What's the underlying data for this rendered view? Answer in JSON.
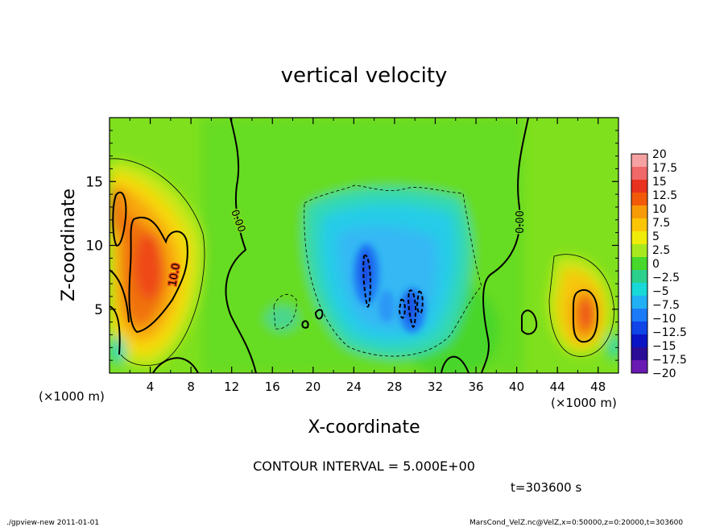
{
  "chart_data": {
    "type": "heatmap",
    "title": "vertical velocity",
    "xlabel": "X-coordinate",
    "ylabel": "Z-coordinate",
    "x_unit_left": "(×1000 m)",
    "x_unit_right": "(×1000 m)",
    "xlim": [
      0,
      50
    ],
    "ylim": [
      0,
      20
    ],
    "xticks": [
      "4",
      "8",
      "12",
      "16",
      "20",
      "24",
      "28",
      "32",
      "36",
      "40",
      "44",
      "48"
    ],
    "yticks": [
      "5",
      "10",
      "15"
    ],
    "grid": false,
    "colorbar": {
      "labels": [
        "20",
        "17.5",
        "15",
        "12.5",
        "10",
        "7.5",
        "5",
        "2.5",
        "0",
        "−2.5",
        "−5",
        "−7.5",
        "−10",
        "−12.5",
        "−15",
        "−17.5",
        "−20"
      ],
      "colors": [
        "#f6a2a2",
        "#f06868",
        "#e8331e",
        "#f25a0a",
        "#f79a08",
        "#fcc506",
        "#f0ec0a",
        "#a8e81e",
        "#46d82a",
        "#2ad08c",
        "#18d8d8",
        "#22b0f4",
        "#1a7af8",
        "#0e44e8",
        "#0a14c4",
        "#2a0c96",
        "#6a1ab2"
      ]
    },
    "contour_labels": [
      "0.00",
      "0.00",
      "10.0"
    ],
    "contour_interval": "CONTOUR INTERVAL = 5.000E+00",
    "time_label": "t=303600 s",
    "updrafts": [
      {
        "x": 4.5,
        "z": 8.5,
        "peak": 13
      },
      {
        "x": 46.5,
        "z": 5.2,
        "peak": 11
      }
    ],
    "downdrafts": [
      {
        "x": 25.2,
        "z": 8.0,
        "peak": -12
      },
      {
        "x": 29.8,
        "z": 5.5,
        "peak": -10
      }
    ],
    "footer_left": "./gpview-new  2011-01-01",
    "footer_right": "MarsCond_VelZ.nc@VelZ,x=0:50000,z=0:20000,t=303600"
  }
}
